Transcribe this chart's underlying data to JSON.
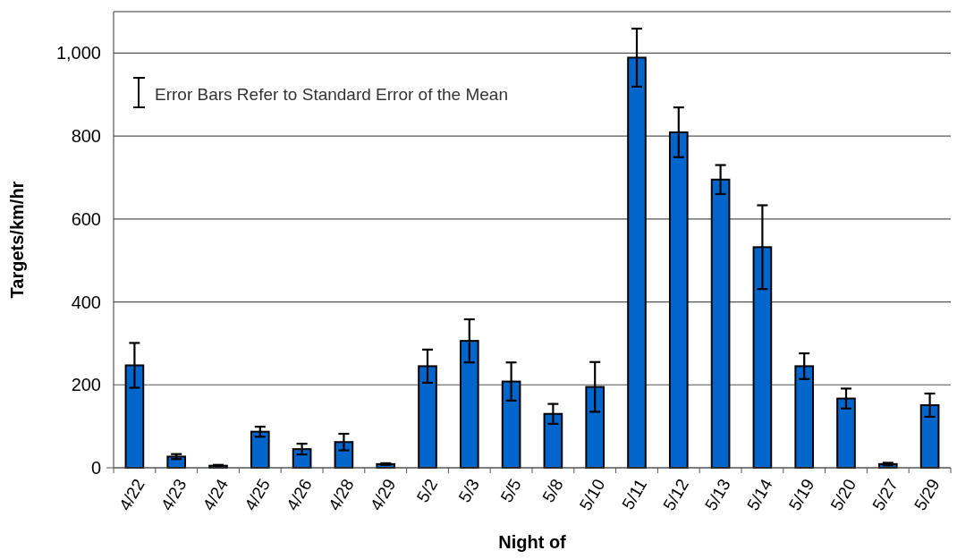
{
  "chart_data": {
    "type": "bar",
    "xlabel": "Night of",
    "ylabel": "Targets/km/hr",
    "annotations": [
      "Error Bars Refer to Standard Error of the Mean"
    ],
    "categories": [
      "4/22",
      "4/23",
      "4/24",
      "4/25",
      "4/26",
      "4/28",
      "4/29",
      "5/2",
      "5/3",
      "5/5",
      "5/8",
      "5/10",
      "5/11",
      "5/12",
      "5/13",
      "5/14",
      "5/19",
      "5/20",
      "5/27",
      "5/29"
    ],
    "values": [
      247,
      27,
      5,
      87,
      45,
      62,
      9,
      245,
      306,
      208,
      130,
      195,
      989,
      809,
      695,
      532,
      245,
      167,
      9,
      151
    ],
    "errors": [
      54,
      6,
      2,
      12,
      13,
      20,
      2,
      40,
      52,
      46,
      24,
      60,
      70,
      60,
      35,
      101,
      31,
      24,
      3,
      28
    ],
    "color": "#0066cc",
    "ylim": [
      0,
      1100
    ],
    "yticks": [
      0,
      200,
      400,
      600,
      800,
      {
        "value": 1000,
        "label": "1,000"
      }
    ],
    "grid": "y"
  }
}
